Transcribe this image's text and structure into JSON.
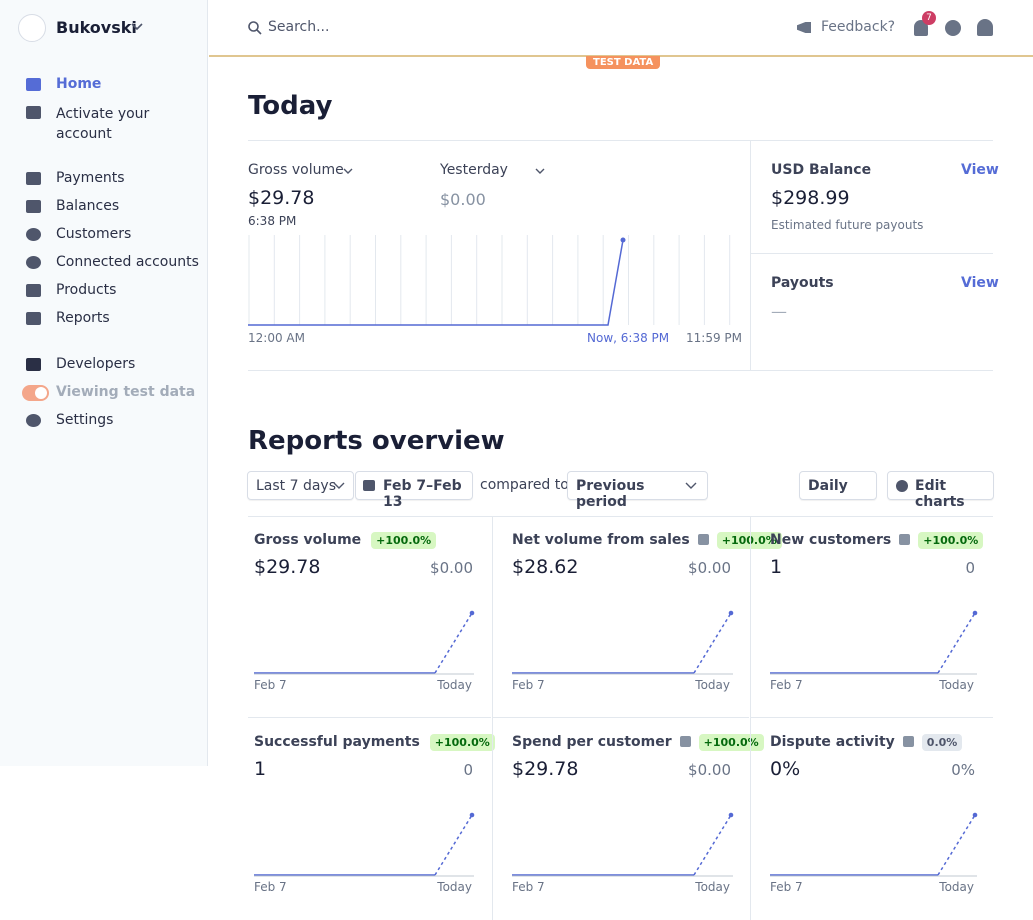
{
  "sidebar": {
    "account": "Bukovski",
    "nav": [
      {
        "label": "Home"
      },
      {
        "label": "Activate your account"
      },
      {
        "label": "Payments"
      },
      {
        "label": "Balances"
      },
      {
        "label": "Customers"
      },
      {
        "label": "Connected accounts"
      },
      {
        "label": "Products"
      },
      {
        "label": "Reports"
      },
      {
        "label": "Developers"
      },
      {
        "label": "Viewing test data"
      },
      {
        "label": "Settings"
      }
    ]
  },
  "topbar": {
    "search": "Search...",
    "feedback": "Feedback?",
    "notifications": "7",
    "badge": "TEST DATA"
  },
  "today": {
    "title": "Today",
    "gross_label": "Gross volume",
    "gross_value": "$29.78",
    "gross_time": "6:38 PM",
    "compare_label": "Yesterday",
    "compare_value": "$0.00",
    "x_labels": [
      "12:00 AM",
      "Now, 6:38 PM",
      "11:59 PM"
    ],
    "balance_label": "USD Balance",
    "balance_value": "$298.99",
    "balance_note": "Estimated future payouts",
    "payouts_label": "Payouts",
    "payouts_value": "—",
    "view": "View"
  },
  "reports": {
    "title": "Reports overview",
    "range": "Last 7 days",
    "dates": "Feb 7–Feb 13",
    "compared": "compared to",
    "period": "Previous period",
    "interval": "Daily",
    "edit": "Edit charts",
    "start": "Feb 7",
    "end": "Today",
    "cards": [
      {
        "title": "Gross volume",
        "change": "+100.0%",
        "value": "$29.78",
        "previous": "$0.00"
      },
      {
        "title": "Net volume from sales",
        "change": "+100.0%",
        "value": "$28.62",
        "previous": "$0.00"
      },
      {
        "title": "New customers",
        "change": "+100.0%",
        "value": "1",
        "previous": "0"
      },
      {
        "title": "Successful payments",
        "change": "+100.0%",
        "value": "1",
        "previous": "0"
      },
      {
        "title": "Spend per customer",
        "change": "+100.0%",
        "value": "$29.78",
        "previous": "$0.00"
      },
      {
        "title": "Dispute activity",
        "change": "0.0%",
        "value": "0%",
        "previous": "0%"
      }
    ]
  }
}
